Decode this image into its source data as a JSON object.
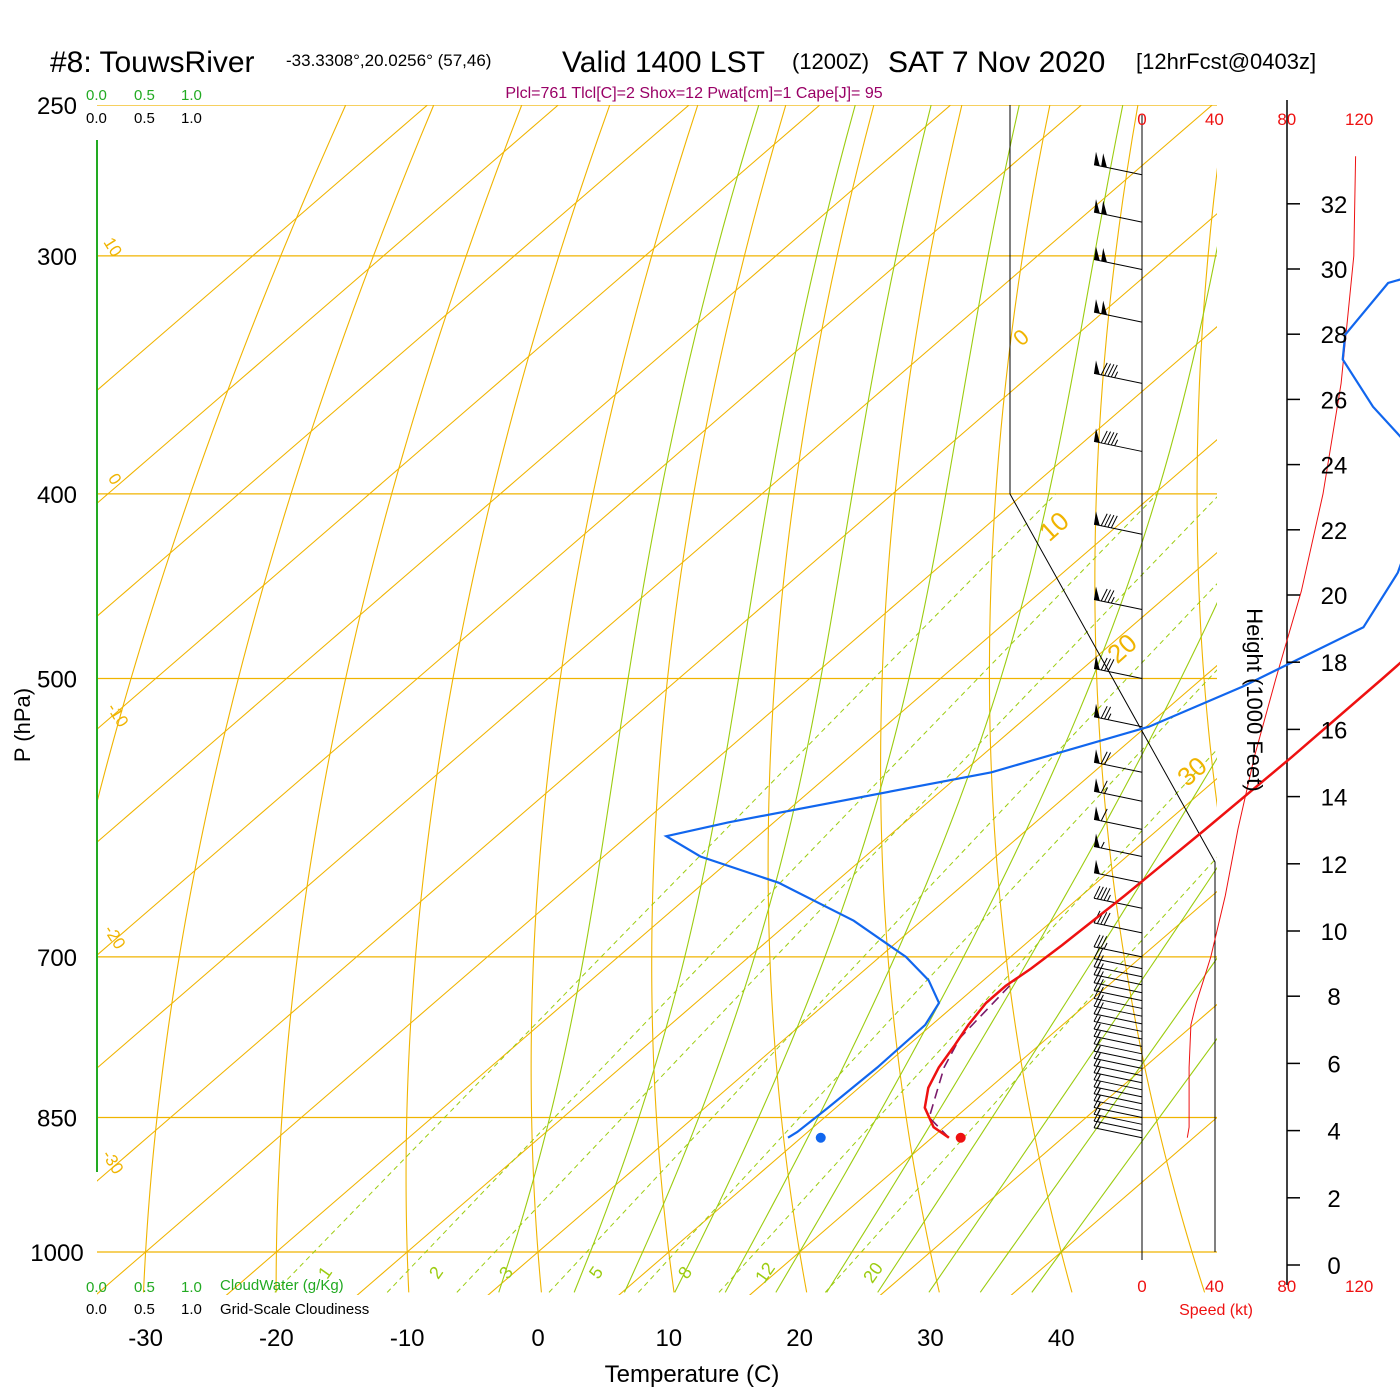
{
  "header": {
    "station": "#8: TouwsRiver",
    "coords": "-33.3308°,20.0256° (57,46)",
    "valid": "Valid 1400 LST",
    "zulu": "(1200Z)",
    "date": "SAT 7 Nov 2020",
    "forecast": "[12hrFcst@0403z]",
    "indices": "Plcl=761 Tlcl[C]=2 Shox=12 Pwat[cm]=1 Cape[J]= 95"
  },
  "colors": {
    "temperature": "#ee1111",
    "dewpoint": "#1166ee",
    "parcel": "#7a1a6a",
    "isotherm": "#f0b400",
    "dry_adiabat": "#f0b400",
    "moist_adiabat": "#9ccc10",
    "mixing_ratio": "#9ccc10",
    "cloud_water": "#22aa22",
    "speed": "#ee1111",
    "indices": "#990066"
  },
  "labels": {
    "top_green_scale": [
      "0.0",
      "0.5",
      "1.0"
    ],
    "top_black_scale": [
      "0.0",
      "0.5",
      "1.0"
    ],
    "bottom_green_scale": [
      "0.0",
      "0.5",
      "1.0"
    ],
    "bottom_black_scale": [
      "0.0",
      "0.5",
      "1.0"
    ],
    "cloud_water": "CloudWater (g/Kg)",
    "cloudiness": "Grid-Scale Cloudiness",
    "speed_axis": "Speed (kt)"
  },
  "chart_data": {
    "type": "skew-t",
    "xlabel": "Temperature (C)",
    "ylabel": "P (hPa)",
    "y2label": "Height (1000 Feet)",
    "x_ticks": [
      -30,
      -20,
      -10,
      0,
      10,
      20,
      30,
      40
    ],
    "p_ticks": [
      250,
      300,
      400,
      500,
      700,
      850,
      1000
    ],
    "height_ticks": [
      0,
      2,
      4,
      6,
      8,
      10,
      12,
      14,
      16,
      18,
      20,
      22,
      24,
      26,
      28,
      30,
      32
    ],
    "speed_ticks": [
      0,
      40,
      80,
      120
    ],
    "dry_adiabat_labels": [
      "10",
      "0",
      "-10",
      "-20",
      "-30"
    ],
    "moist_adiabat_labels": [
      "0",
      "10",
      "20",
      "30"
    ],
    "mixing_ratio_labels": [
      "1",
      "2",
      "3",
      "5",
      "8",
      "12",
      "20"
    ],
    "temperature": [
      [
        871,
        21.3
      ],
      [
        860,
        19.2
      ],
      [
        840,
        16.8
      ],
      [
        820,
        15.3
      ],
      [
        800,
        14.3
      ],
      [
        780,
        13.6
      ],
      [
        760,
        12.8
      ],
      [
        740,
        12.2
      ],
      [
        725,
        12.2
      ],
      [
        710,
        12.6
      ],
      [
        690,
        12.9
      ],
      [
        650,
        13.3
      ],
      [
        600,
        13.6
      ],
      [
        550,
        13.8
      ],
      [
        500,
        13.8
      ],
      [
        470,
        13.7
      ],
      [
        440,
        13.6
      ],
      [
        400,
        13.2
      ],
      [
        370,
        12.5
      ],
      [
        340,
        11.2
      ],
      [
        320,
        10.0
      ],
      [
        300,
        8.6
      ],
      [
        280,
        7.2
      ],
      [
        266,
        6.4
      ]
    ],
    "dewpoint": [
      [
        871,
        9.0
      ],
      [
        865,
        9.2
      ],
      [
        840,
        9.4
      ],
      [
        800,
        9.6
      ],
      [
        760,
        9.5
      ],
      [
        740,
        8.6
      ],
      [
        720,
        5.8
      ],
      [
        700,
        2.0
      ],
      [
        670,
        -5.2
      ],
      [
        640,
        -14.3
      ],
      [
        620,
        -22.6
      ],
      [
        605,
        -27.0
      ],
      [
        595,
        -23.5
      ],
      [
        560,
        -7.8
      ],
      [
        530,
        0.2
      ],
      [
        505,
        3.8
      ],
      [
        470,
        7.8
      ],
      [
        440,
        5.6
      ],
      [
        390,
        -0.5
      ],
      [
        360,
        -11.0
      ],
      [
        340,
        -17.5
      ],
      [
        330,
        -19.5
      ],
      [
        310,
        -20.8
      ],
      [
        300,
        -16.0
      ],
      [
        284,
        -9.5
      ],
      [
        268,
        -6.6
      ]
    ],
    "parcel": [
      [
        871,
        21.3
      ],
      [
        850,
        18.0
      ],
      [
        800,
        14.7
      ],
      [
        772,
        13.3
      ],
      [
        760,
        13.1
      ],
      [
        720,
        12.4
      ],
      [
        712,
        12.5
      ]
    ],
    "surface_temperature": 22.2,
    "surface_dewpoint": 11.5,
    "surface_pressure": 871,
    "speed_profile": [
      [
        871,
        25
      ],
      [
        860,
        26
      ],
      [
        840,
        26
      ],
      [
        800,
        26
      ],
      [
        760,
        27
      ],
      [
        740,
        30
      ],
      [
        720,
        34
      ],
      [
        700,
        38
      ],
      [
        650,
        46
      ],
      [
        600,
        53
      ],
      [
        550,
        62
      ],
      [
        500,
        74
      ],
      [
        450,
        88
      ],
      [
        400,
        100
      ],
      [
        350,
        110
      ],
      [
        300,
        117
      ],
      [
        266,
        118
      ]
    ],
    "wind_barbs": [
      [
        871,
        15
      ],
      [
        864,
        15
      ],
      [
        857,
        15
      ],
      [
        850,
        15
      ],
      [
        843,
        16
      ],
      [
        836,
        16
      ],
      [
        829,
        16
      ],
      [
        822,
        17
      ],
      [
        815,
        17
      ],
      [
        808,
        17
      ],
      [
        801,
        18
      ],
      [
        794,
        18
      ],
      [
        787,
        18
      ],
      [
        780,
        19
      ],
      [
        773,
        19
      ],
      [
        766,
        19
      ],
      [
        759,
        20
      ],
      [
        752,
        20
      ],
      [
        745,
        21
      ],
      [
        738,
        21
      ],
      [
        731,
        22
      ],
      [
        724,
        22
      ],
      [
        717,
        23
      ],
      [
        710,
        23
      ],
      [
        700,
        35
      ],
      [
        680,
        40
      ],
      [
        660,
        45
      ],
      [
        640,
        50
      ],
      [
        620,
        55
      ],
      [
        600,
        60
      ],
      [
        580,
        65
      ],
      [
        560,
        70
      ],
      [
        530,
        75
      ],
      [
        500,
        80
      ],
      [
        460,
        85
      ],
      [
        420,
        90
      ],
      [
        380,
        95
      ],
      [
        350,
        95
      ],
      [
        325,
        100
      ],
      [
        305,
        100
      ],
      [
        288,
        100
      ],
      [
        272,
        100
      ]
    ]
  }
}
